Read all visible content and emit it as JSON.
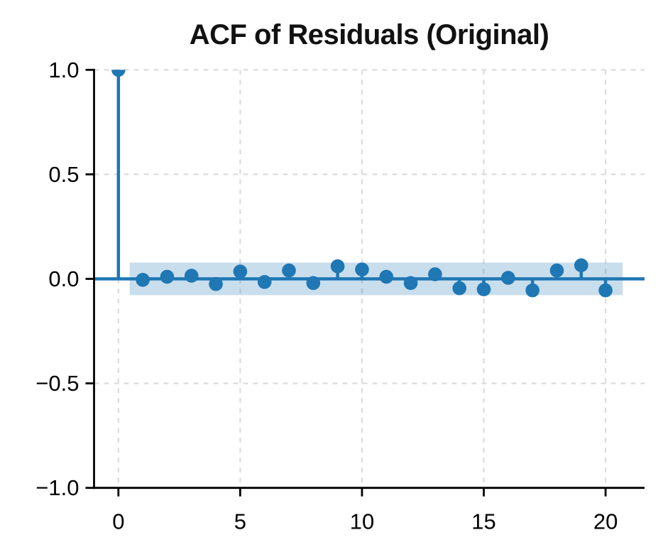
{
  "chart_data": {
    "type": "stem",
    "title": "ACF of Residuals (Original)",
    "xlabel": "",
    "ylabel": "",
    "x": [
      0,
      1,
      2,
      3,
      4,
      5,
      6,
      7,
      8,
      9,
      10,
      11,
      12,
      13,
      14,
      15,
      16,
      17,
      18,
      19,
      20
    ],
    "values": [
      1.0,
      -0.005,
      0.01,
      0.015,
      -0.025,
      0.035,
      -0.015,
      0.04,
      -0.02,
      0.06,
      0.045,
      0.01,
      -0.02,
      0.022,
      -0.045,
      -0.05,
      0.005,
      -0.055,
      0.04,
      0.065,
      -0.055
    ],
    "confidence_band": {
      "low": -0.078,
      "high": 0.078,
      "x_start": 0.46,
      "x_end": 20.7
    },
    "zero_line": 0.0,
    "xticks": [
      0,
      5,
      10,
      15,
      20
    ],
    "xtick_labels": [
      "0",
      "5",
      "10",
      "15",
      "20"
    ],
    "yticks": [
      1.0,
      0.5,
      0.0,
      -0.5,
      -1.0
    ],
    "ytick_labels": [
      "1.0",
      "0.5",
      "0.0",
      "−0.5",
      "−1.0"
    ],
    "xlim": [
      -1.0,
      21.6
    ],
    "ylim": [
      -1.0,
      1.0
    ],
    "grid": {
      "on": true,
      "style": "dashed",
      "x_at": [
        0,
        5,
        10,
        15,
        20
      ],
      "y_at": [
        1.0,
        0.5,
        0.0,
        -0.5,
        -1.0
      ]
    },
    "legend": "none",
    "colors": {
      "stem": "#1f77b4",
      "marker": "#1f77b4",
      "band": "#1f77b4",
      "band_opacity": 0.24,
      "grid": "#dcdcdc",
      "axis": "#000000",
      "text": "#000000",
      "background": "#ffffff"
    }
  }
}
